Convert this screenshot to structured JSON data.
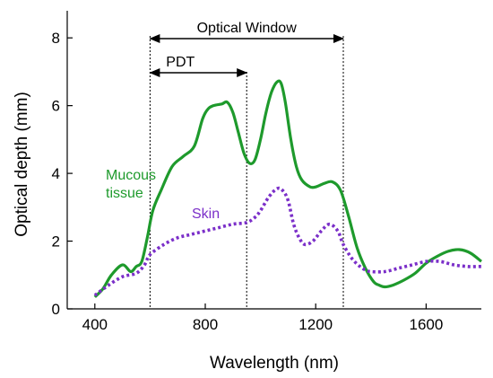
{
  "chart_data": {
    "type": "line",
    "title": "",
    "xlabel": "Wavelength (nm)",
    "ylabel": "Optical depth (mm)",
    "xlim": [
      300,
      1800
    ],
    "ylim": [
      0,
      8.8
    ],
    "xticks": [
      400,
      800,
      1200,
      1600
    ],
    "yticks": [
      0,
      2,
      4,
      6,
      8
    ],
    "x_tick_labels": [
      "400",
      "800",
      "1200",
      "1600"
    ],
    "y_tick_labels": [
      "0",
      "2",
      "4",
      "6",
      "8"
    ],
    "grid": false,
    "legend": "none",
    "series": [
      {
        "name": "Mucous tissue",
        "color": "#1e9a2c",
        "style": "solid",
        "x": [
          400,
          430,
          460,
          500,
          530,
          550,
          570,
          590,
          610,
          640,
          680,
          720,
          760,
          790,
          810,
          830,
          860,
          880,
          900,
          920,
          940,
          960,
          980,
          1000,
          1020,
          1040,
          1060,
          1075,
          1090,
          1110,
          1130,
          1150,
          1180,
          1200,
          1230,
          1260,
          1290,
          1320,
          1350,
          1380,
          1410,
          1430,
          1450,
          1480,
          1520,
          1560,
          1600,
          1640,
          1680,
          1720,
          1760,
          1800
        ],
        "y": [
          0.35,
          0.6,
          1.0,
          1.3,
          1.1,
          1.25,
          1.4,
          2.1,
          2.9,
          3.5,
          4.2,
          4.5,
          4.8,
          5.6,
          5.9,
          6.0,
          6.05,
          6.1,
          5.8,
          5.2,
          4.6,
          4.3,
          4.4,
          5.0,
          5.8,
          6.4,
          6.7,
          6.65,
          6.1,
          5.0,
          4.2,
          3.8,
          3.6,
          3.6,
          3.7,
          3.75,
          3.5,
          2.7,
          1.8,
          1.2,
          0.8,
          0.7,
          0.65,
          0.7,
          0.85,
          1.05,
          1.35,
          1.55,
          1.7,
          1.75,
          1.65,
          1.4
        ]
      },
      {
        "name": "Skin",
        "color": "#7b2fc9",
        "style": "dotted",
        "x": [
          400,
          450,
          500,
          550,
          580,
          600,
          650,
          700,
          750,
          800,
          850,
          900,
          950,
          980,
          1000,
          1030,
          1060,
          1080,
          1100,
          1120,
          1140,
          1160,
          1190,
          1220,
          1250,
          1280,
          1300,
          1330,
          1360,
          1380,
          1400,
          1450,
          1500,
          1550,
          1600,
          1650,
          1700,
          1750,
          1800
        ],
        "y": [
          0.4,
          0.7,
          0.95,
          1.05,
          1.3,
          1.6,
          1.9,
          2.1,
          2.2,
          2.3,
          2.4,
          2.5,
          2.55,
          2.7,
          2.9,
          3.3,
          3.55,
          3.5,
          3.2,
          2.5,
          2.1,
          1.9,
          2.0,
          2.3,
          2.5,
          2.3,
          1.9,
          1.5,
          1.25,
          1.15,
          1.1,
          1.1,
          1.2,
          1.3,
          1.4,
          1.4,
          1.3,
          1.25,
          1.25
        ]
      }
    ],
    "series_labels": [
      "Mucous\ntissue",
      "Skin"
    ],
    "annotations": [
      {
        "text": "Optical Window",
        "x_start": 600,
        "x_end": 1300
      },
      {
        "text": "PDT",
        "x_start": 600,
        "x_end": 950
      }
    ]
  }
}
